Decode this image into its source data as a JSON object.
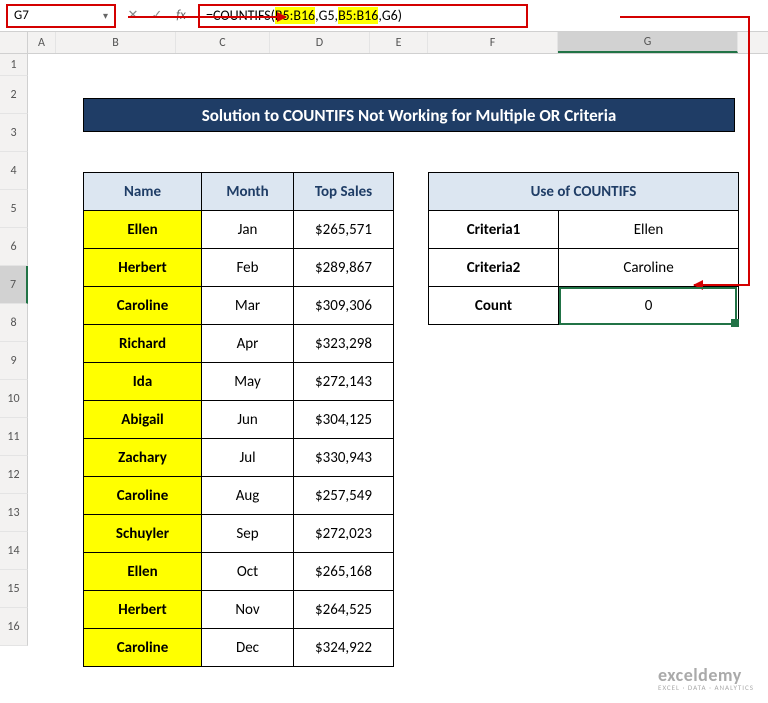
{
  "nameBox": "G7",
  "formula": {
    "prefix": "=COUNTIFS(",
    "r1": "B5:B16",
    "a1": ",G5,",
    "r2": "B5:B16",
    "a2": ",G6)"
  },
  "banner": "Solution to COUNTIFS Not Working for Multiple OR Criteria",
  "columns": {
    "A": 28,
    "B": 120,
    "C": 94,
    "D": 100,
    "E": 58,
    "F": 130,
    "G": 180
  },
  "dataHeaders": {
    "name": "Name",
    "month": "Month",
    "sales": "Top Sales"
  },
  "rows": [
    {
      "name": "Ellen",
      "month": "Jan",
      "sales": "$265,571"
    },
    {
      "name": "Herbert",
      "month": "Feb",
      "sales": "$289,867"
    },
    {
      "name": "Caroline",
      "month": "Mar",
      "sales": "$309,306"
    },
    {
      "name": "Richard",
      "month": "Apr",
      "sales": "$323,298"
    },
    {
      "name": "Ida",
      "month": "May",
      "sales": "$272,143"
    },
    {
      "name": "Abigail",
      "month": "Jun",
      "sales": "$304,125"
    },
    {
      "name": "Zachary",
      "month": "Jul",
      "sales": "$330,943"
    },
    {
      "name": "Caroline",
      "month": "Aug",
      "sales": "$257,549"
    },
    {
      "name": "Schuyler",
      "month": "Sep",
      "sales": "$272,023"
    },
    {
      "name": "Ellen",
      "month": "Oct",
      "sales": "$265,168"
    },
    {
      "name": "Herbert",
      "month": "Nov",
      "sales": "$264,525"
    },
    {
      "name": "Caroline",
      "month": "Dec",
      "sales": "$324,922"
    }
  ],
  "side": {
    "title": "Use of COUNTIFS",
    "crit1_lbl": "Criteria1",
    "crit1_val": "Ellen",
    "crit2_lbl": "Criteria2",
    "crit2_val": "Caroline",
    "count_lbl": "Count",
    "count_val": "0"
  },
  "rowNums": [
    "1",
    "2",
    "3",
    "4",
    "5",
    "6",
    "7",
    "8",
    "9",
    "10",
    "11",
    "12",
    "13",
    "14",
    "15",
    "16"
  ],
  "colLetters": [
    "A",
    "B",
    "C",
    "D",
    "E",
    "F",
    "G"
  ],
  "watermark": {
    "big": "exceldemy",
    "small": "EXCEL · DATA · ANALYTICS"
  }
}
